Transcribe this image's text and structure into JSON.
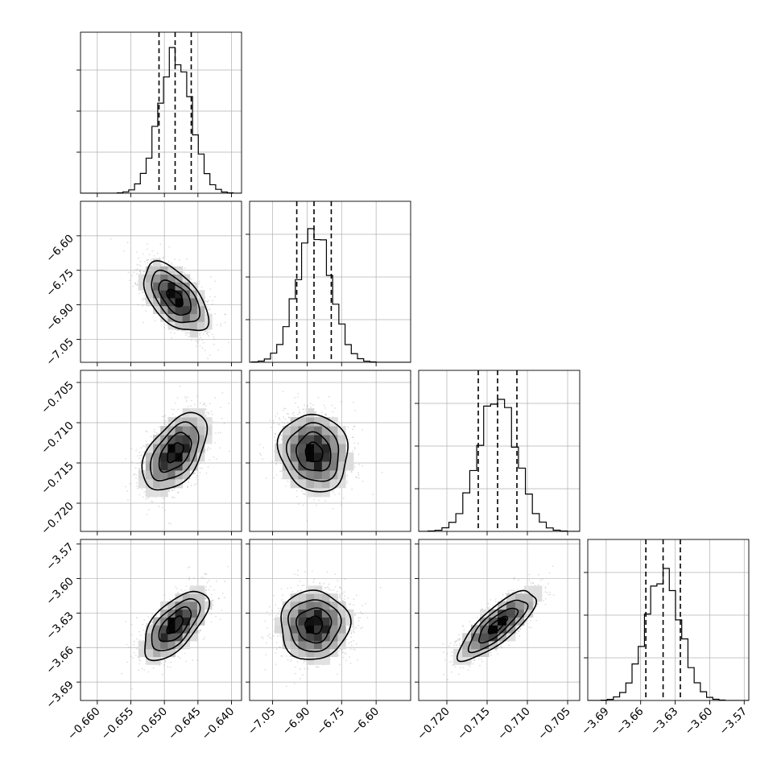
{
  "chart_data": {
    "type": "corner",
    "params": [
      {
        "index": 0,
        "median": -0.6484,
        "sigma": 0.0024,
        "q16": -0.6508,
        "q84": -0.646,
        "axis_range": [
          -0.6625,
          -0.6385
        ],
        "ticks": [
          -0.66,
          -0.655,
          -0.65,
          -0.645,
          -0.64
        ],
        "tick_labels": [
          "−0.660",
          "−0.655",
          "−0.650",
          "−0.645",
          "−0.640"
        ]
      },
      {
        "index": 1,
        "median": -6.87,
        "sigma": 0.075,
        "q16": -6.945,
        "q84": -6.795,
        "axis_range": [
          -7.15,
          -6.45
        ],
        "ticks": [
          -7.05,
          -6.9,
          -6.75,
          -6.6
        ],
        "tick_labels": [
          "−7.05",
          "−6.90",
          "−6.75",
          "−6.60"
        ]
      },
      {
        "index": 2,
        "median": -0.7137,
        "sigma": 0.0024,
        "q16": -0.7161,
        "q84": -0.7113,
        "axis_range": [
          -0.7235,
          -0.7035
        ],
        "ticks": [
          -0.72,
          -0.715,
          -0.71,
          -0.705
        ],
        "tick_labels": [
          "−0.720",
          "−0.715",
          "−0.710",
          "−0.705"
        ]
      },
      {
        "index": 3,
        "median": -3.6405,
        "sigma": 0.015,
        "q16": -3.6555,
        "q84": -3.6255,
        "axis_range": [
          -3.706,
          -3.566
        ],
        "ticks": [
          -3.69,
          -3.66,
          -3.63,
          -3.6,
          -3.57
        ],
        "tick_labels": [
          "−3.69",
          "−3.66",
          "−3.63",
          "−3.60",
          "−3.57"
        ]
      }
    ],
    "correlations": {
      "1,0": -0.55,
      "2,0": 0.5,
      "2,1": -0.1,
      "3,0": 0.62,
      "3,1": 0.02,
      "3,2": 0.8
    },
    "histogram_peak_fraction": [
      0.905,
      0.83,
      0.82,
      0.82
    ],
    "grid": true,
    "contour_levels_sigma": [
      0.5,
      1.0,
      1.5,
      2.0
    ]
  }
}
